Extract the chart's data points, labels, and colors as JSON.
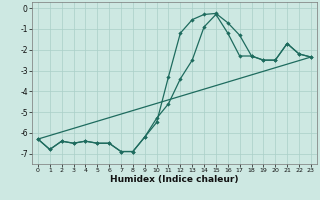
{
  "xlabel": "Humidex (Indice chaleur)",
  "xlim": [
    -0.5,
    23.5
  ],
  "ylim": [
    -7.5,
    0.3
  ],
  "yticks": [
    0,
    -1,
    -2,
    -3,
    -4,
    -5,
    -6,
    -7
  ],
  "xticks": [
    0,
    1,
    2,
    3,
    4,
    5,
    6,
    7,
    8,
    9,
    10,
    11,
    12,
    13,
    14,
    15,
    16,
    17,
    18,
    19,
    20,
    21,
    22,
    23
  ],
  "bg_color": "#cde8e2",
  "line_color": "#1e6b5e",
  "grid_color": "#aacfc8",
  "line1_x": [
    0,
    1,
    2,
    3,
    4,
    5,
    6,
    7,
    8,
    9,
    10,
    11,
    12,
    13,
    14,
    15,
    16,
    17,
    18,
    19,
    20,
    21,
    22,
    23
  ],
  "line1_y": [
    -6.3,
    -6.8,
    -6.4,
    -6.5,
    -6.4,
    -6.5,
    -6.5,
    -6.9,
    -6.9,
    -6.2,
    -5.5,
    -3.3,
    -1.2,
    -0.55,
    -0.3,
    -0.25,
    -0.7,
    -1.3,
    -2.3,
    -2.5,
    -2.5,
    -1.7,
    -2.2,
    -2.35
  ],
  "line2_x": [
    0,
    1,
    2,
    3,
    4,
    5,
    6,
    7,
    8,
    9,
    10,
    11,
    12,
    13,
    14,
    15,
    16,
    17,
    18,
    19,
    20,
    21,
    22,
    23
  ],
  "line2_y": [
    -6.3,
    -6.8,
    -6.4,
    -6.5,
    -6.4,
    -6.5,
    -6.5,
    -6.9,
    -6.9,
    -6.2,
    -5.3,
    -4.6,
    -3.4,
    -2.5,
    -0.9,
    -0.3,
    -1.2,
    -2.3,
    -2.3,
    -2.5,
    -2.5,
    -1.7,
    -2.2,
    -2.35
  ],
  "line3_x": [
    0,
    23
  ],
  "line3_y": [
    -6.3,
    -2.35
  ]
}
